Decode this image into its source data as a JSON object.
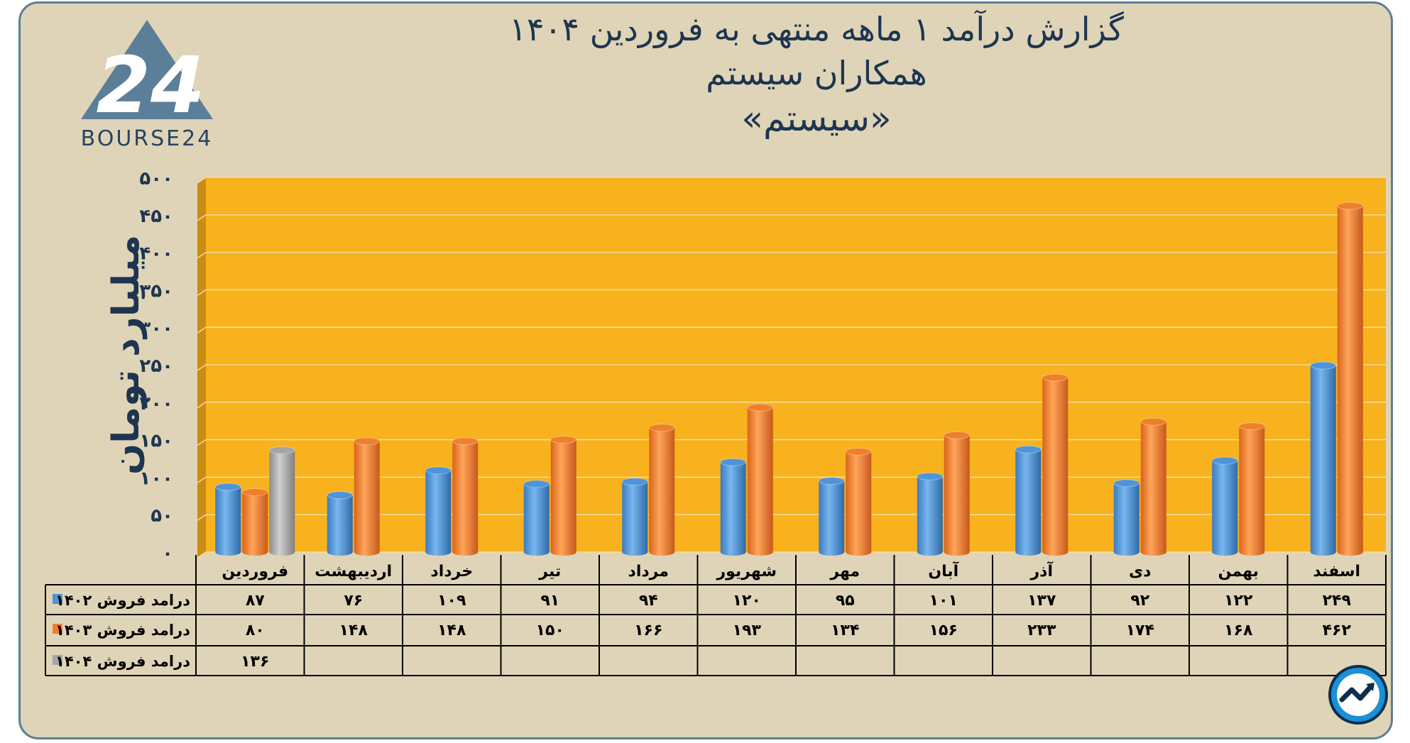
{
  "header": {
    "title_line1": "گزارش  درآمد ۱ ماهه منتهی به فروردین ۱۴۰۴",
    "title_line2": "همکاران سیستم",
    "title_line3": "«سیستم»"
  },
  "logo": {
    "text": "BOURSE24",
    "mark": "24",
    "icon": "bourse24-triangle-logo-icon"
  },
  "colors": {
    "s1402": "#4f94d8",
    "s1403": "#f07f2b",
    "s1404": "#a5a5a5",
    "plot_bg": "#f7b21e",
    "frame_bg": "#dfd4b7",
    "title": "#1d3550"
  },
  "chart_data": {
    "type": "bar",
    "title": "گزارش  درآمد ۱ ماهه منتهی به فروردین ۱۴۰۴",
    "ylabel": "میلیارد تومان",
    "xlabel": "",
    "ylim": [
      0,
      500
    ],
    "yticks": [
      0,
      50,
      100,
      150,
      200,
      250,
      300,
      350,
      400,
      450,
      500
    ],
    "ytick_labels": [
      "۰",
      "۵۰",
      "۱۰۰",
      "۱۵۰",
      "۲۰۰",
      "۲۵۰",
      "۳۰۰",
      "۳۵۰",
      "۴۰۰",
      "۴۵۰",
      "۵۰۰"
    ],
    "categories": [
      "فروردین",
      "اردیبهشت",
      "خرداد",
      "تیر",
      "مرداد",
      "شهریور",
      "مهر",
      "آبان",
      "آذر",
      "دی",
      "بهمن",
      "اسفند"
    ],
    "series": [
      {
        "name": "درامد فروش ۱۴۰۲",
        "values": [
          87,
          76,
          109,
          91,
          94,
          120,
          95,
          101,
          137,
          92,
          122,
          249
        ],
        "labels": [
          "۸۷",
          "۷۶",
          "۱۰۹",
          "۹۱",
          "۹۴",
          "۱۲۰",
          "۹۵",
          "۱۰۱",
          "۱۳۷",
          "۹۲",
          "۱۲۲",
          "۲۴۹"
        ]
      },
      {
        "name": "درامد فروش ۱۴۰۳",
        "values": [
          80,
          148,
          148,
          150,
          166,
          193,
          134,
          156,
          233,
          174,
          168,
          462
        ],
        "labels": [
          "۸۰",
          "۱۴۸",
          "۱۴۸",
          "۱۵۰",
          "۱۶۶",
          "۱۹۳",
          "۱۳۴",
          "۱۵۶",
          "۲۳۳",
          "۱۷۴",
          "۱۶۸",
          "۴۶۲"
        ]
      },
      {
        "name": "درامد فروش ۱۴۰۴",
        "values": [
          136,
          null,
          null,
          null,
          null,
          null,
          null,
          null,
          null,
          null,
          null,
          null
        ],
        "labels": [
          "۱۳۶",
          "",
          "",
          "",
          "",
          "",
          "",
          "",
          "",
          "",
          "",
          ""
        ]
      }
    ],
    "grid": true,
    "legend": "data-table"
  }
}
